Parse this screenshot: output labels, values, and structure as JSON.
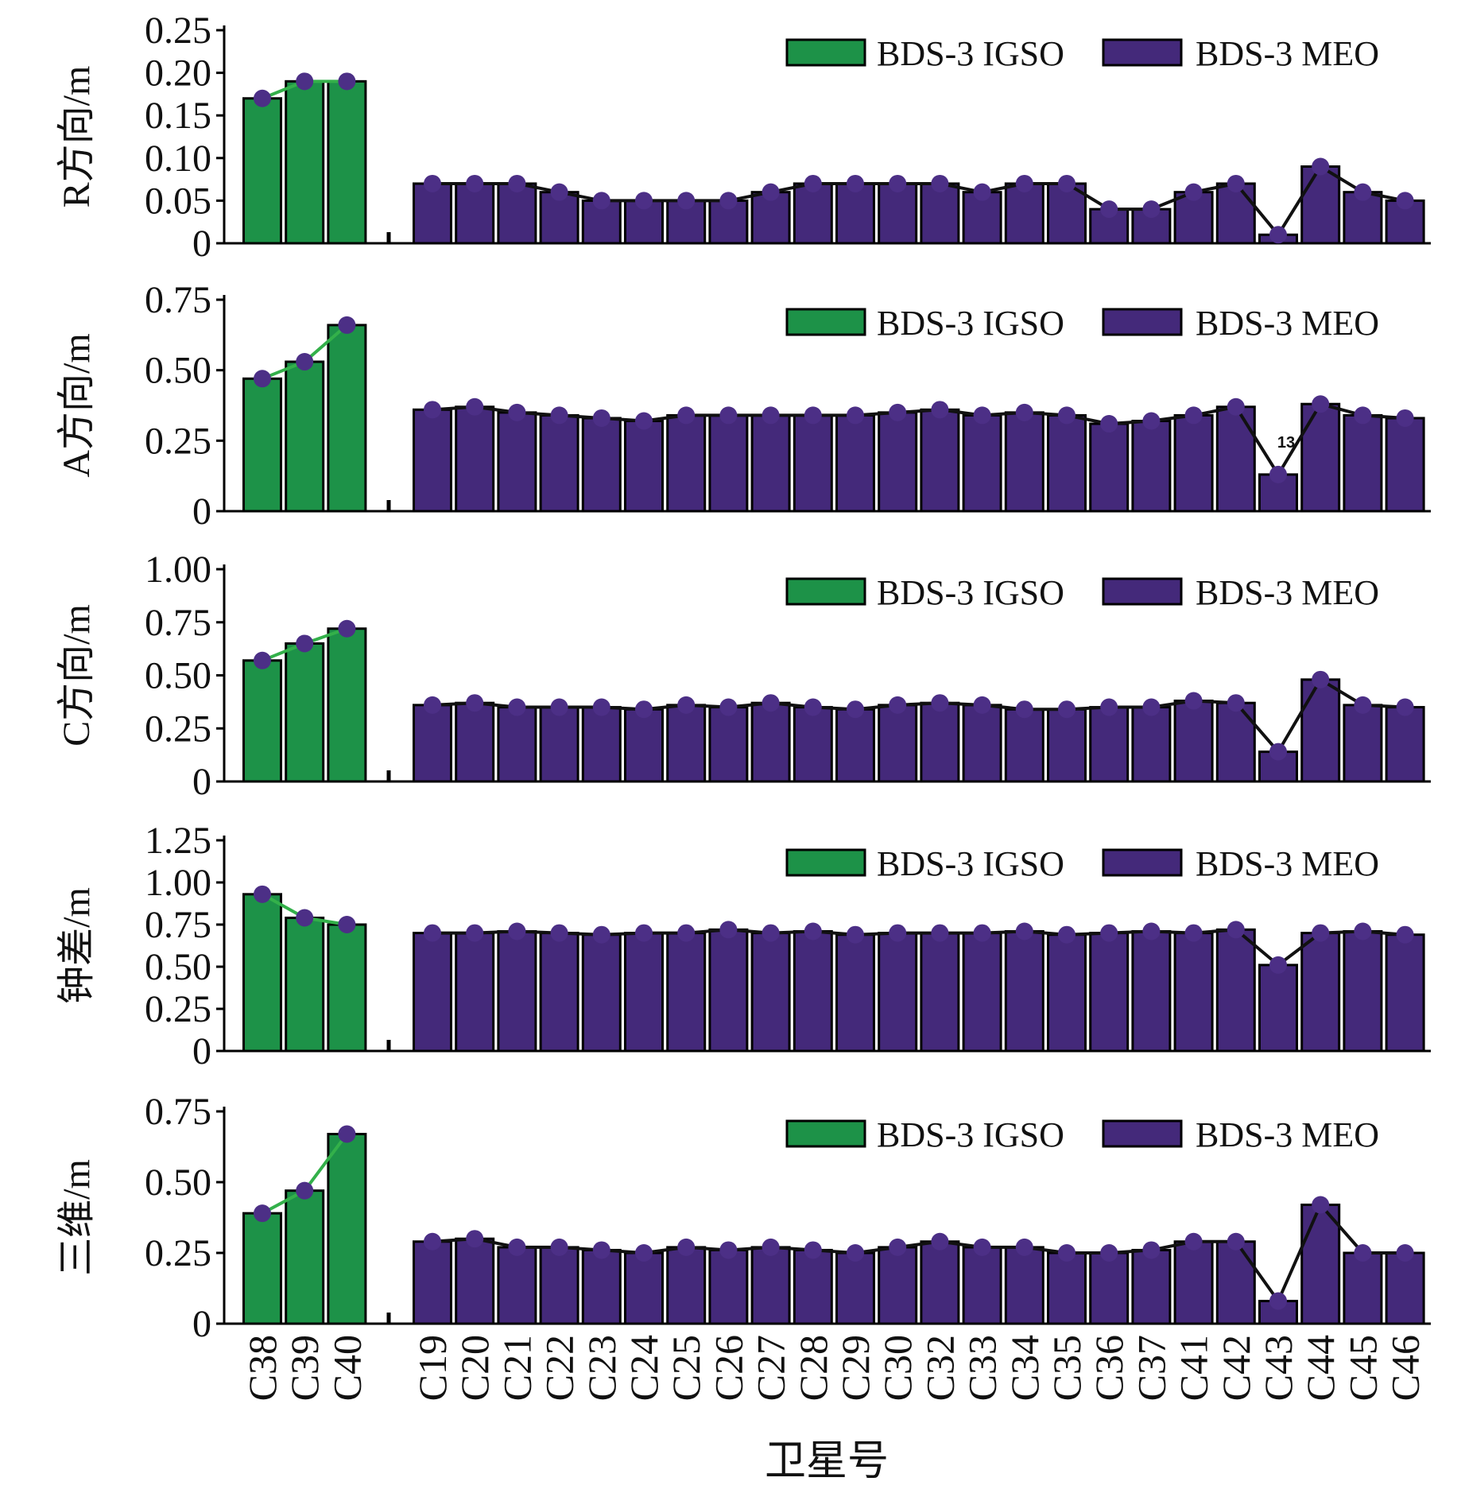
{
  "colors": {
    "igso": "#1d9248",
    "igso_line": "#33b04a",
    "meo": "#44297a",
    "meo_line": "#111111",
    "marker": "#4c2f86",
    "axis": "#000000"
  },
  "x_axis_title": "卫星号",
  "chart_data": [
    {
      "type": "bar",
      "ylabel": "R方向/m",
      "ylim": [
        0,
        0.25
      ],
      "yticks": [
        "0",
        "0.05",
        "0.10",
        "0.15",
        "0.20",
        "0.25"
      ],
      "legend": [
        "BDS-3 IGSO",
        "BDS-3 MEO"
      ],
      "legend_position": "top-right",
      "series": [
        {
          "name": "BDS-3 IGSO",
          "categories": [
            "C38",
            "C39",
            "C40"
          ],
          "values": [
            0.17,
            0.19,
            0.19
          ]
        },
        {
          "name": "BDS-3 MEO",
          "categories": [
            "C19",
            "C20",
            "C21",
            "C22",
            "C23",
            "C24",
            "C25",
            "C26",
            "C27",
            "C28",
            "C29",
            "C30",
            "C32",
            "C33",
            "C34",
            "C35",
            "C36",
            "C37",
            "C41",
            "C42",
            "C43",
            "C44",
            "C45",
            "C46"
          ],
          "values": [
            0.07,
            0.07,
            0.07,
            0.06,
            0.05,
            0.05,
            0.05,
            0.05,
            0.06,
            0.07,
            0.07,
            0.07,
            0.07,
            0.06,
            0.07,
            0.07,
            0.04,
            0.04,
            0.06,
            0.07,
            0.01,
            0.09,
            0.06,
            0.05
          ]
        }
      ]
    },
    {
      "type": "bar",
      "ylabel": "A方向/m",
      "ylim": [
        0,
        0.75
      ],
      "yticks": [
        "0",
        "0.25",
        "0.50",
        "0.75"
      ],
      "legend": [
        "BDS-3 IGSO",
        "BDS-3 MEO"
      ],
      "legend_position": "top-right",
      "annotations": [
        {
          "text": "13",
          "category": "C43"
        }
      ],
      "series": [
        {
          "name": "BDS-3 IGSO",
          "categories": [
            "C38",
            "C39",
            "C40"
          ],
          "values": [
            0.47,
            0.53,
            0.66
          ]
        },
        {
          "name": "BDS-3 MEO",
          "categories": [
            "C19",
            "C20",
            "C21",
            "C22",
            "C23",
            "C24",
            "C25",
            "C26",
            "C27",
            "C28",
            "C29",
            "C30",
            "C32",
            "C33",
            "C34",
            "C35",
            "C36",
            "C37",
            "C41",
            "C42",
            "C43",
            "C44",
            "C45",
            "C46"
          ],
          "values": [
            0.36,
            0.37,
            0.35,
            0.34,
            0.33,
            0.32,
            0.34,
            0.34,
            0.34,
            0.34,
            0.34,
            0.35,
            0.36,
            0.34,
            0.35,
            0.34,
            0.31,
            0.32,
            0.34,
            0.37,
            0.13,
            0.38,
            0.34,
            0.33
          ]
        }
      ]
    },
    {
      "type": "bar",
      "ylabel": "C方向/m",
      "ylim": [
        0,
        1.0
      ],
      "yticks": [
        "0",
        "0.25",
        "0.50",
        "0.75",
        "1.00"
      ],
      "legend": [
        "BDS-3 IGSO",
        "BDS-3 MEO"
      ],
      "legend_position": "top-right",
      "series": [
        {
          "name": "BDS-3 IGSO",
          "categories": [
            "C38",
            "C39",
            "C40"
          ],
          "values": [
            0.57,
            0.65,
            0.72
          ]
        },
        {
          "name": "BDS-3 MEO",
          "categories": [
            "C19",
            "C20",
            "C21",
            "C22",
            "C23",
            "C24",
            "C25",
            "C26",
            "C27",
            "C28",
            "C29",
            "C30",
            "C32",
            "C33",
            "C34",
            "C35",
            "C36",
            "C37",
            "C41",
            "C42",
            "C43",
            "C44",
            "C45",
            "C46"
          ],
          "values": [
            0.36,
            0.37,
            0.35,
            0.35,
            0.35,
            0.34,
            0.36,
            0.35,
            0.37,
            0.35,
            0.34,
            0.36,
            0.37,
            0.36,
            0.34,
            0.34,
            0.35,
            0.35,
            0.38,
            0.37,
            0.14,
            0.48,
            0.36,
            0.35
          ]
        }
      ]
    },
    {
      "type": "bar",
      "ylabel": "钟差/m",
      "ylim": [
        0,
        1.25
      ],
      "yticks": [
        "0",
        "0.25",
        "0.50",
        "0.75",
        "1.00",
        "1.25"
      ],
      "legend": [
        "BDS-3 IGSO",
        "BDS-3 MEO"
      ],
      "legend_position": "top-right",
      "series": [
        {
          "name": "BDS-3 IGSO",
          "categories": [
            "C38",
            "C39",
            "C40"
          ],
          "values": [
            0.93,
            0.79,
            0.75
          ]
        },
        {
          "name": "BDS-3 MEO",
          "categories": [
            "C19",
            "C20",
            "C21",
            "C22",
            "C23",
            "C24",
            "C25",
            "C26",
            "C27",
            "C28",
            "C29",
            "C30",
            "C32",
            "C33",
            "C34",
            "C35",
            "C36",
            "C37",
            "C41",
            "C42",
            "C43",
            "C44",
            "C45",
            "C46"
          ],
          "values": [
            0.7,
            0.7,
            0.71,
            0.7,
            0.69,
            0.7,
            0.7,
            0.72,
            0.7,
            0.71,
            0.69,
            0.7,
            0.7,
            0.7,
            0.71,
            0.69,
            0.7,
            0.71,
            0.7,
            0.72,
            0.51,
            0.7,
            0.71,
            0.69
          ]
        }
      ]
    },
    {
      "type": "bar",
      "ylabel": "三维/m",
      "ylim": [
        0,
        0.75
      ],
      "yticks": [
        "0",
        "0.25",
        "0.50",
        "0.75"
      ],
      "legend": [
        "BDS-3 IGSO",
        "BDS-3 MEO"
      ],
      "legend_position": "top-right",
      "series": [
        {
          "name": "BDS-3 IGSO",
          "categories": [
            "C38",
            "C39",
            "C40"
          ],
          "values": [
            0.39,
            0.47,
            0.67
          ]
        },
        {
          "name": "BDS-3 MEO",
          "categories": [
            "C19",
            "C20",
            "C21",
            "C22",
            "C23",
            "C24",
            "C25",
            "C26",
            "C27",
            "C28",
            "C29",
            "C30",
            "C32",
            "C33",
            "C34",
            "C35",
            "C36",
            "C37",
            "C41",
            "C42",
            "C43",
            "C44",
            "C45",
            "C46"
          ],
          "values": [
            0.29,
            0.3,
            0.27,
            0.27,
            0.26,
            0.25,
            0.27,
            0.26,
            0.27,
            0.26,
            0.25,
            0.27,
            0.29,
            0.27,
            0.27,
            0.25,
            0.25,
            0.26,
            0.29,
            0.29,
            0.08,
            0.42,
            0.25,
            0.25
          ]
        }
      ]
    }
  ]
}
